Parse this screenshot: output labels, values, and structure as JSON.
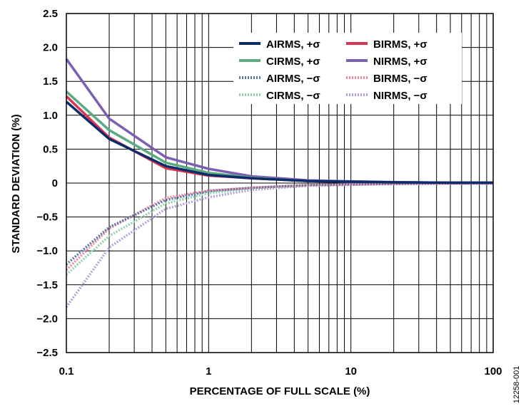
{
  "chart_data": {
    "type": "line",
    "xlabel": "PERCENTAGE OF FULL SCALE (%)",
    "ylabel": "STANDARD DEVIATION (%)",
    "x_scale": "log",
    "xlim": [
      0.1,
      100
    ],
    "ylim": [
      -2.5,
      2.5
    ],
    "x_tick_labels": [
      "0.1",
      "1",
      "10",
      "100"
    ],
    "y_tick_labels": [
      "2.5",
      "2.0",
      "1.5",
      "1.0",
      "0.5",
      "0",
      "−0.5",
      "−1.0",
      "−1.5",
      "−2.0",
      "−2.5"
    ],
    "grid": true,
    "legend_position": "top-right",
    "figure_id": "12258-001",
    "x": [
      0.1,
      0.2,
      0.5,
      1,
      2,
      5,
      10,
      20,
      50,
      100
    ],
    "series": [
      {
        "name": "AIRMS, +σ",
        "color": "#0b2c6a",
        "style": "solid",
        "values": [
          1.2,
          0.65,
          0.25,
          0.12,
          0.07,
          0.03,
          0.02,
          0.01,
          0.005,
          0.005
        ]
      },
      {
        "name": "BIRMS, +σ",
        "color": "#d93550",
        "style": "solid",
        "values": [
          1.28,
          0.67,
          0.22,
          0.11,
          0.07,
          0.03,
          0.02,
          0.01,
          0.005,
          0.005
        ]
      },
      {
        "name": "CIRMS, +σ",
        "color": "#5aaa82",
        "style": "solid",
        "values": [
          1.35,
          0.78,
          0.3,
          0.15,
          0.08,
          0.03,
          0.02,
          0.01,
          0.005,
          0.005
        ]
      },
      {
        "name": "NIRMS, +σ",
        "color": "#7b5fb3",
        "style": "solid",
        "values": [
          1.83,
          0.95,
          0.38,
          0.21,
          0.1,
          0.04,
          0.025,
          0.015,
          0.005,
          0.005
        ]
      },
      {
        "name": "AIRMS, −σ",
        "color": "#5d76a8",
        "style": "dotted",
        "values": [
          -1.2,
          -0.65,
          -0.25,
          -0.12,
          -0.07,
          -0.03,
          -0.02,
          -0.01,
          -0.005,
          -0.005
        ]
      },
      {
        "name": "BIRMS, −σ",
        "color": "#f08a9a",
        "style": "dotted",
        "values": [
          -1.28,
          -0.67,
          -0.22,
          -0.11,
          -0.07,
          -0.03,
          -0.02,
          -0.01,
          -0.005,
          -0.005
        ]
      },
      {
        "name": "CIRMS, −σ",
        "color": "#93d2ae",
        "style": "dotted",
        "values": [
          -1.35,
          -0.78,
          -0.3,
          -0.15,
          -0.08,
          -0.03,
          -0.02,
          -0.01,
          -0.005,
          -0.005
        ]
      },
      {
        "name": "NIRMS, −σ",
        "color": "#b4a2d6",
        "style": "dotted",
        "values": [
          -1.83,
          -0.95,
          -0.38,
          -0.21,
          -0.1,
          -0.04,
          -0.025,
          -0.015,
          -0.005,
          -0.005
        ]
      }
    ]
  }
}
